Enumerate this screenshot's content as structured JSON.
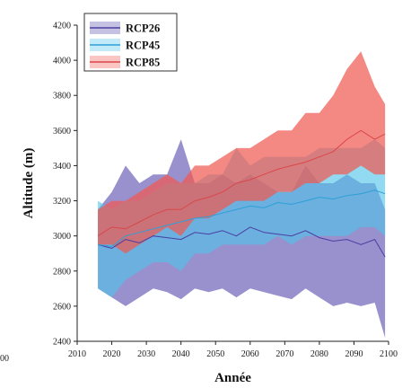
{
  "chart_data": {
    "type": "area",
    "xlabel": "Année",
    "ylabel": "Altitude (m)",
    "xlim": [
      2010,
      2100
    ],
    "ylim": [
      2400,
      4200
    ],
    "xticks": [
      2010,
      2020,
      2030,
      2040,
      2050,
      2060,
      2070,
      2080,
      2090,
      2100
    ],
    "yticks": [
      2400,
      2600,
      2800,
      3000,
      3200,
      3400,
      3600,
      3800,
      4000,
      4200
    ],
    "legend_position": "top-left",
    "left_edge_fragment": "00",
    "x": [
      2016,
      2020,
      2024,
      2028,
      2032,
      2036,
      2040,
      2044,
      2048,
      2052,
      2056,
      2060,
      2064,
      2068,
      2072,
      2076,
      2080,
      2084,
      2088,
      2092,
      2096,
      2099
    ],
    "series": [
      {
        "name": "RCP26",
        "color": "#4a3fa3",
        "band_color": "#5a4db0",
        "mean": [
          2950,
          2930,
          2980,
          2960,
          3000,
          2990,
          2980,
          3020,
          3010,
          3030,
          3000,
          3050,
          3020,
          3010,
          3000,
          3030,
          2990,
          2970,
          2980,
          2950,
          2980,
          2880
        ],
        "lower": [
          2700,
          2650,
          2600,
          2650,
          2700,
          2680,
          2640,
          2700,
          2680,
          2700,
          2650,
          2700,
          2680,
          2660,
          2640,
          2700,
          2650,
          2600,
          2620,
          2600,
          2620,
          2420
        ],
        "upper": [
          3150,
          3250,
          3400,
          3300,
          3350,
          3350,
          3550,
          3300,
          3300,
          3350,
          3300,
          3350,
          3300,
          3250,
          3250,
          3400,
          3300,
          3300,
          3350,
          3300,
          3300,
          3150
        ]
      },
      {
        "name": "RCP45",
        "color": "#2e9fd6",
        "band_color": "#4fc3ea",
        "mean": [
          2950,
          2940,
          3000,
          3020,
          3040,
          3060,
          3080,
          3100,
          3110,
          3130,
          3150,
          3170,
          3160,
          3190,
          3180,
          3200,
          3220,
          3210,
          3230,
          3240,
          3260,
          3240
        ],
        "lower": [
          2700,
          2650,
          2750,
          2800,
          2850,
          2850,
          2800,
          2900,
          2900,
          2950,
          2950,
          2950,
          2950,
          3000,
          2950,
          3000,
          3000,
          3000,
          3000,
          3050,
          3050,
          3000
        ],
        "upper": [
          3200,
          3150,
          3200,
          3200,
          3250,
          3300,
          3300,
          3300,
          3350,
          3350,
          3500,
          3400,
          3450,
          3450,
          3450,
          3450,
          3500,
          3500,
          3500,
          3500,
          3550,
          3500
        ]
      },
      {
        "name": "RCP85",
        "color": "#d9474b",
        "band_color": "#f05a52",
        "mean": [
          3000,
          3050,
          3040,
          3080,
          3120,
          3150,
          3150,
          3200,
          3220,
          3250,
          3300,
          3320,
          3350,
          3380,
          3400,
          3420,
          3450,
          3480,
          3550,
          3600,
          3550,
          3580
        ],
        "lower": [
          2950,
          2950,
          2900,
          2950,
          3000,
          3050,
          3000,
          3100,
          3100,
          3150,
          3200,
          3200,
          3200,
          3250,
          3250,
          3300,
          3300,
          3350,
          3350,
          3400,
          3350,
          3350
        ],
        "upper": [
          3150,
          3200,
          3200,
          3250,
          3300,
          3350,
          3300,
          3400,
          3400,
          3450,
          3500,
          3500,
          3550,
          3600,
          3600,
          3700,
          3700,
          3800,
          3950,
          4050,
          3850,
          3750
        ]
      }
    ]
  }
}
